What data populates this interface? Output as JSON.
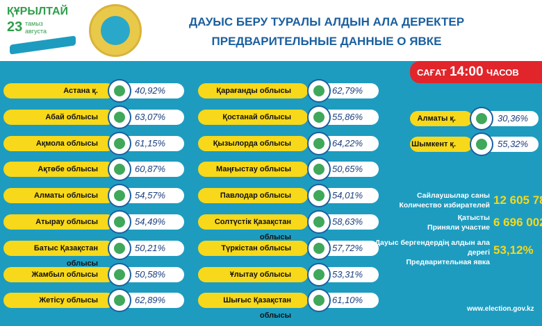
{
  "logo": {
    "title": "ҚҰРЫЛТАЙ",
    "day": "23",
    "month_kz": "тамыз",
    "month_ru": "августа"
  },
  "header": {
    "title_kz": "ДАУЫС БЕРУ ТУРАЛЫ АЛДЫН АЛА ДЕРЕКТЕР",
    "title_ru": "ПРЕДВАРИТЕЛЬНЫЕ ДАННЫЕ О ЯВКЕ"
  },
  "badge": {
    "label_kz": "САҒАТ",
    "time": "14:00",
    "label_ru": "ЧАСОВ"
  },
  "columns": [
    [
      {
        "name": "Астана қ.",
        "value": "40,92%"
      },
      {
        "name": "Абай облысы",
        "value": "63,07%"
      },
      {
        "name": "Ақмола облысы",
        "value": "61,15%"
      },
      {
        "name": "Ақтөбе облысы",
        "value": "60,87%"
      },
      {
        "name": "Алматы облысы",
        "value": "54,57%"
      },
      {
        "name": "Атырау облысы",
        "value": "54,49%"
      },
      {
        "name": "Батыс Қазақстан облысы",
        "value": "50,21%"
      },
      {
        "name": "Жамбыл облысы",
        "value": "50,58%"
      },
      {
        "name": "Жетісу облысы",
        "value": "62,89%"
      }
    ],
    [
      {
        "name": "Қарағанды облысы",
        "value": "62,79%"
      },
      {
        "name": "Қостанай облысы",
        "value": "55,86%"
      },
      {
        "name": "Қызылорда облысы",
        "value": "64,22%"
      },
      {
        "name": "Маңғыстау облысы",
        "value": "50,65%"
      },
      {
        "name": "Павлодар облысы",
        "value": "54,01%"
      },
      {
        "name": "Солтүстік Қазақстан облысы",
        "value": "58,63%"
      },
      {
        "name": "Түркістан облысы",
        "value": "57,72%"
      },
      {
        "name": "Ұлытау облысы",
        "value": "53,31%"
      },
      {
        "name": "Шығыс Қазақстан облысы",
        "value": "61,10%"
      }
    ],
    [
      {
        "name": "Алматы қ.",
        "value": "30,36%"
      },
      {
        "name": "Шымкент қ.",
        "value": "55,32%"
      }
    ]
  ],
  "stats": [
    {
      "label_kz": "Сайлаушылар саны",
      "label_ru": "Количество избирателей",
      "value": "12 605 78"
    },
    {
      "label_kz": "Қатысты",
      "label_ru": "Приняли участие",
      "value": "6 696 002"
    },
    {
      "label_kz": "Дауыс бергендердің алдын ала дерегі",
      "label_ru": "Предварительная явка",
      "value": "53,12%"
    }
  ],
  "footer": {
    "website": "www.election.gov.kz"
  }
}
